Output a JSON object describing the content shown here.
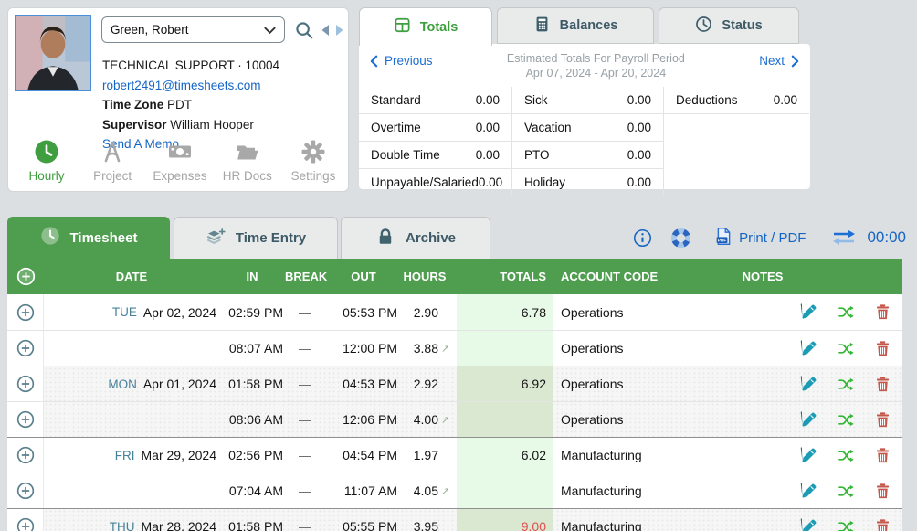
{
  "colors": {
    "accent_green": "#4f9d4f",
    "link_blue": "#1566c2",
    "slate": "#3d5a66",
    "alert_red": "#e0504e",
    "pencil_teal": "#1b9cb4",
    "share_green": "#35b535",
    "trash_red": "#c4564a",
    "day_blue": "#45809b",
    "totals_band_light": "#e7fae7",
    "totals_band_dark": "#dae7d1"
  },
  "employee": {
    "selector_value": "Green, Robert",
    "title_line": "TECHNICAL SUPPORT · 10004",
    "email": "robert2491@timesheets.com",
    "timezone_label": "Time Zone",
    "timezone_value": "PDT",
    "supervisor_label": "Supervisor",
    "supervisor_value": "William Hooper",
    "memo_link": "Send A Memo",
    "nav": [
      {
        "label": "Hourly",
        "icon": "clock-icon",
        "active": true
      },
      {
        "label": "Project",
        "icon": "compass-icon",
        "active": false
      },
      {
        "label": "Expenses",
        "icon": "money-icon",
        "active": false
      },
      {
        "label": "HR Docs",
        "icon": "folder-icon",
        "active": false
      },
      {
        "label": "Settings",
        "icon": "gear-icon",
        "active": false
      }
    ]
  },
  "summary_tabs": [
    {
      "label": "Totals",
      "icon": "table-icon",
      "active": true
    },
    {
      "label": "Balances",
      "icon": "calculator-icon",
      "active": false
    },
    {
      "label": "Status",
      "icon": "clock-icon",
      "active": false
    }
  ],
  "totals_panel": {
    "previous_label": "Previous",
    "next_label": "Next",
    "title_line1": "Estimated Totals For Payroll Period",
    "title_line2": "Apr 07, 2024 - Apr 20, 2024",
    "columns": [
      {
        "cells": [
          {
            "label": "Standard",
            "value": "0.00"
          },
          {
            "label": "Overtime",
            "value": "0.00"
          },
          {
            "label": "Double Time",
            "value": "0.00"
          },
          {
            "label": "Unpayable/Salaried",
            "value": "0.00"
          }
        ]
      },
      {
        "cells": [
          {
            "label": "Sick",
            "value": "0.00"
          },
          {
            "label": "Vacation",
            "value": "0.00"
          },
          {
            "label": "PTO",
            "value": "0.00"
          },
          {
            "label": "Holiday",
            "value": "0.00"
          }
        ]
      },
      {
        "cells": [
          {
            "label": "Deductions",
            "value": "0.00"
          }
        ]
      }
    ]
  },
  "main_tabs": [
    {
      "label": "Timesheet",
      "icon": "clock-icon",
      "active": true
    },
    {
      "label": "Time Entry",
      "icon": "layers-plus-icon",
      "active": false
    },
    {
      "label": "Archive",
      "icon": "lock-icon",
      "active": false
    }
  ],
  "toolbar": {
    "print_label": "Print / PDF",
    "timer": "00:00",
    "icons": [
      "info-icon",
      "help-lifering-icon",
      "pdf-file-icon",
      "swap-arrows-icon"
    ]
  },
  "table": {
    "headers": [
      "DATE",
      "IN",
      "BREAK",
      "OUT",
      "HOURS",
      "TOTALS",
      "ACCOUNT CODE",
      "NOTES"
    ],
    "arrow_glyph": "↗",
    "rows": [
      {
        "day": "TUE",
        "date": "Apr 02, 2024",
        "in_time": "02:59 PM",
        "break_val": "—",
        "out_time": "05:53 PM",
        "hours": "2.90",
        "has_arrow": false,
        "total": "6.78",
        "total_red": false,
        "account": "Operations",
        "alt": false,
        "group_start": true
      },
      {
        "day": "",
        "date": "",
        "in_time": "08:07 AM",
        "break_val": "—",
        "out_time": "12:00 PM",
        "hours": "3.88",
        "has_arrow": true,
        "total": "",
        "total_red": false,
        "account": "Operations",
        "alt": false,
        "group_start": false
      },
      {
        "day": "MON",
        "date": "Apr 01, 2024",
        "in_time": "01:58 PM",
        "break_val": "—",
        "out_time": "04:53 PM",
        "hours": "2.92",
        "has_arrow": false,
        "total": "6.92",
        "total_red": false,
        "account": "Operations",
        "alt": true,
        "group_start": true
      },
      {
        "day": "",
        "date": "",
        "in_time": "08:06 AM",
        "break_val": "—",
        "out_time": "12:06 PM",
        "hours": "4.00",
        "has_arrow": true,
        "total": "",
        "total_red": false,
        "account": "Operations",
        "alt": true,
        "group_start": false
      },
      {
        "day": "FRI",
        "date": "Mar 29, 2024",
        "in_time": "02:56 PM",
        "break_val": "—",
        "out_time": "04:54 PM",
        "hours": "1.97",
        "has_arrow": false,
        "total": "6.02",
        "total_red": false,
        "account": "Manufacturing",
        "alt": false,
        "group_start": true
      },
      {
        "day": "",
        "date": "",
        "in_time": "07:04 AM",
        "break_val": "—",
        "out_time": "11:07 AM",
        "hours": "4.05",
        "has_arrow": true,
        "total": "",
        "total_red": false,
        "account": "Manufacturing",
        "alt": false,
        "group_start": false
      },
      {
        "day": "THU",
        "date": "Mar 28, 2024",
        "in_time": "01:58 PM",
        "break_val": "—",
        "out_time": "05:55 PM",
        "hours": "3.95",
        "has_arrow": false,
        "total": "9.00",
        "total_red": true,
        "account": "Manufacturing",
        "alt": true,
        "group_start": true
      }
    ]
  }
}
